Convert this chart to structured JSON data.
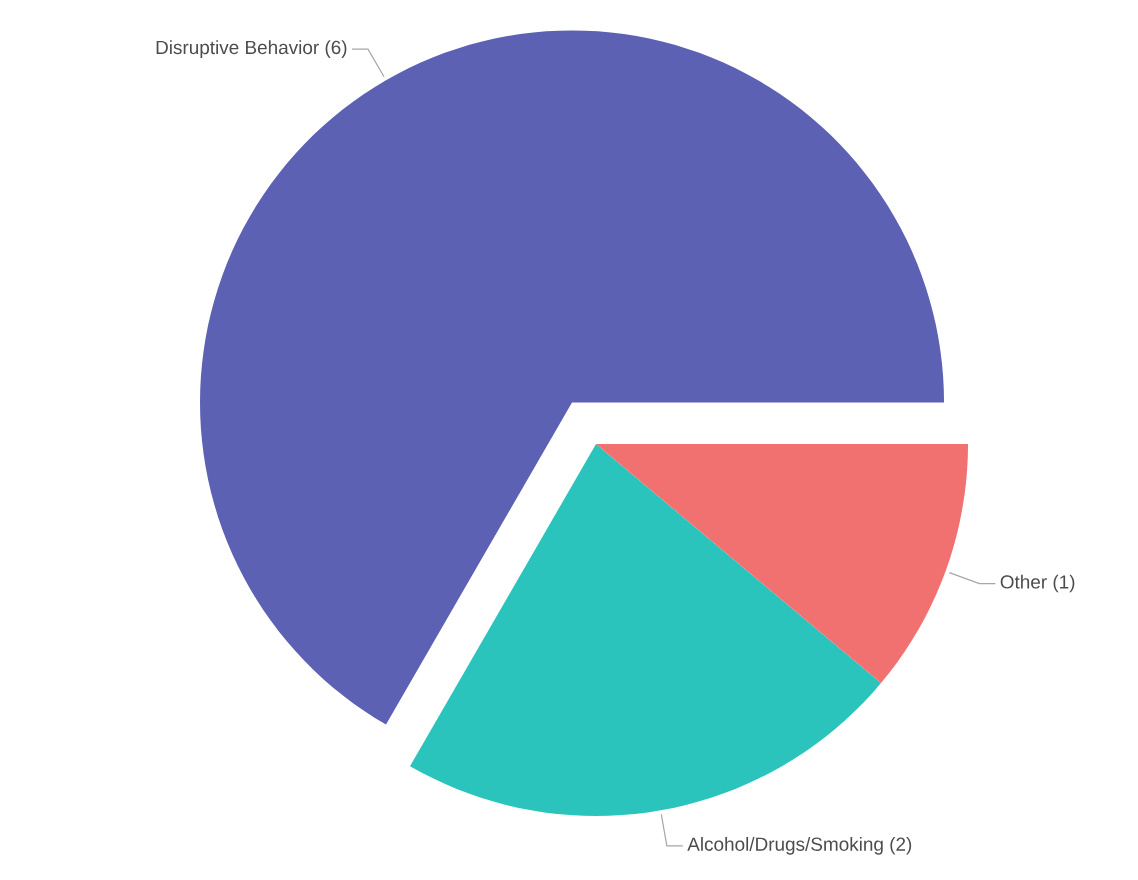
{
  "chart_data": {
    "type": "pie",
    "categories": [
      "Disruptive Behavior (6)",
      "Alcohol/Drugs/Smoking (2)",
      "Other (1)"
    ],
    "values": [
      6,
      2,
      1
    ],
    "colors": [
      "#5c61b4",
      "#2ac4bd",
      "#f17171"
    ]
  }
}
